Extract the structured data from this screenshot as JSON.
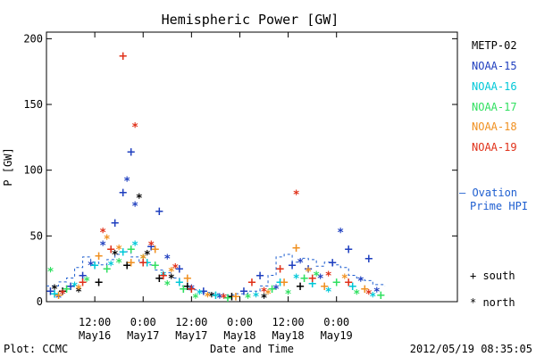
{
  "chart_data": {
    "type": "scatter",
    "title": "Hemispheric Power [GW]",
    "ylabel": "P [GW]",
    "xlabel": "Date and Time",
    "ylim": [
      0,
      205
    ],
    "xlim": [
      0,
      102
    ],
    "x_unit": "hours since 2012-05-16 00:00",
    "yticks": [
      0,
      50,
      100,
      150,
      200
    ],
    "xticks": [
      {
        "x": 12,
        "top": "12:00",
        "bottom": "May16"
      },
      {
        "x": 24,
        "top": "0:00",
        "bottom": "May17"
      },
      {
        "x": 36,
        "top": "12:00",
        "bottom": "May17"
      },
      {
        "x": 48,
        "top": "0:00",
        "bottom": "May18"
      },
      {
        "x": 60,
        "top": "12:00",
        "bottom": "May18"
      },
      {
        "x": 72,
        "top": "0:00",
        "bottom": "May19"
      }
    ],
    "series": [
      {
        "name": "METP-02",
        "color": "#000000",
        "points": [
          {
            "x": 2,
            "y": 12,
            "m": "*"
          },
          {
            "x": 4,
            "y": 8,
            "m": "+"
          },
          {
            "x": 8,
            "y": 10,
            "m": "*"
          },
          {
            "x": 13,
            "y": 15,
            "m": "+"
          },
          {
            "x": 17,
            "y": 38,
            "m": "*"
          },
          {
            "x": 20,
            "y": 28,
            "m": "+"
          },
          {
            "x": 23,
            "y": 81,
            "m": "*"
          },
          {
            "x": 25,
            "y": 38,
            "m": "*"
          },
          {
            "x": 28,
            "y": 18,
            "m": "+"
          },
          {
            "x": 31,
            "y": 20,
            "m": "*"
          },
          {
            "x": 35,
            "y": 12,
            "m": "+"
          },
          {
            "x": 41,
            "y": 6,
            "m": "*"
          },
          {
            "x": 46,
            "y": 4,
            "m": "+"
          },
          {
            "x": 54,
            "y": 5,
            "m": "*"
          },
          {
            "x": 63,
            "y": 12,
            "m": "+"
          }
        ]
      },
      {
        "name": "NOAA-15",
        "color": "#1f3fbf",
        "points": [
          {
            "x": 1,
            "y": 8,
            "m": "+"
          },
          {
            "x": 3,
            "y": 5,
            "m": "*"
          },
          {
            "x": 6,
            "y": 12,
            "m": "+"
          },
          {
            "x": 9,
            "y": 20,
            "m": "+"
          },
          {
            "x": 11,
            "y": 30,
            "m": "*"
          },
          {
            "x": 14,
            "y": 45,
            "m": "*"
          },
          {
            "x": 17,
            "y": 60,
            "m": "+"
          },
          {
            "x": 19,
            "y": 83,
            "m": "+"
          },
          {
            "x": 20,
            "y": 94,
            "m": "*"
          },
          {
            "x": 21,
            "y": 114,
            "m": "+"
          },
          {
            "x": 22,
            "y": 75,
            "m": "*"
          },
          {
            "x": 26,
            "y": 42,
            "m": "+"
          },
          {
            "x": 28,
            "y": 69,
            "m": "+"
          },
          {
            "x": 30,
            "y": 35,
            "m": "*"
          },
          {
            "x": 33,
            "y": 25,
            "m": "+"
          },
          {
            "x": 36,
            "y": 12,
            "m": "*"
          },
          {
            "x": 39,
            "y": 8,
            "m": "+"
          },
          {
            "x": 43,
            "y": 5,
            "m": "*"
          },
          {
            "x": 49,
            "y": 8,
            "m": "+"
          },
          {
            "x": 53,
            "y": 20,
            "m": "+"
          },
          {
            "x": 57,
            "y": 12,
            "m": "*"
          },
          {
            "x": 61,
            "y": 28,
            "m": "+"
          },
          {
            "x": 63,
            "y": 32,
            "m": "*"
          },
          {
            "x": 65,
            "y": 25,
            "m": "+"
          },
          {
            "x": 68,
            "y": 20,
            "m": "*"
          },
          {
            "x": 71,
            "y": 30,
            "m": "+"
          },
          {
            "x": 73,
            "y": 55,
            "m": "*"
          },
          {
            "x": 75,
            "y": 40,
            "m": "+"
          },
          {
            "x": 78,
            "y": 18,
            "m": "*"
          },
          {
            "x": 80,
            "y": 33,
            "m": "+"
          },
          {
            "x": 82,
            "y": 10,
            "m": "*"
          }
        ]
      },
      {
        "name": "NOAA-16",
        "color": "#00c8d8",
        "points": [
          {
            "x": 2,
            "y": 6,
            "m": "+"
          },
          {
            "x": 7,
            "y": 14,
            "m": "*"
          },
          {
            "x": 12,
            "y": 28,
            "m": "+"
          },
          {
            "x": 16,
            "y": 30,
            "m": "*"
          },
          {
            "x": 19,
            "y": 38,
            "m": "+"
          },
          {
            "x": 22,
            "y": 45,
            "m": "*"
          },
          {
            "x": 25,
            "y": 30,
            "m": "+"
          },
          {
            "x": 29,
            "y": 22,
            "m": "*"
          },
          {
            "x": 33,
            "y": 15,
            "m": "+"
          },
          {
            "x": 38,
            "y": 8,
            "m": "*"
          },
          {
            "x": 42,
            "y": 5,
            "m": "+"
          },
          {
            "x": 52,
            "y": 6,
            "m": "*"
          },
          {
            "x": 58,
            "y": 15,
            "m": "+"
          },
          {
            "x": 62,
            "y": 20,
            "m": "*"
          },
          {
            "x": 66,
            "y": 14,
            "m": "+"
          },
          {
            "x": 70,
            "y": 10,
            "m": "*"
          },
          {
            "x": 76,
            "y": 12,
            "m": "+"
          },
          {
            "x": 81,
            "y": 6,
            "m": "*"
          }
        ]
      },
      {
        "name": "NOAA-17",
        "color": "#30e060",
        "points": [
          {
            "x": 1,
            "y": 25,
            "m": "*"
          },
          {
            "x": 5,
            "y": 10,
            "m": "+"
          },
          {
            "x": 10,
            "y": 18,
            "m": "*"
          },
          {
            "x": 15,
            "y": 25,
            "m": "+"
          },
          {
            "x": 18,
            "y": 32,
            "m": "*"
          },
          {
            "x": 21,
            "y": 40,
            "m": "+"
          },
          {
            "x": 24,
            "y": 35,
            "m": "*"
          },
          {
            "x": 27,
            "y": 28,
            "m": "+"
          },
          {
            "x": 30,
            "y": 15,
            "m": "*"
          },
          {
            "x": 34,
            "y": 10,
            "m": "+"
          },
          {
            "x": 37,
            "y": 5,
            "m": "*"
          },
          {
            "x": 45,
            "y": 3,
            "m": "+"
          },
          {
            "x": 50,
            "y": 5,
            "m": "*"
          },
          {
            "x": 56,
            "y": 10,
            "m": "+"
          },
          {
            "x": 60,
            "y": 8,
            "m": "*"
          },
          {
            "x": 64,
            "y": 18,
            "m": "+"
          },
          {
            "x": 67,
            "y": 22,
            "m": "*"
          },
          {
            "x": 72,
            "y": 15,
            "m": "+"
          },
          {
            "x": 77,
            "y": 8,
            "m": "*"
          },
          {
            "x": 83,
            "y": 5,
            "m": "+"
          }
        ]
      },
      {
        "name": "NOAA-18",
        "color": "#f09020",
        "points": [
          {
            "x": 3,
            "y": 5,
            "m": "+"
          },
          {
            "x": 8,
            "y": 12,
            "m": "*"
          },
          {
            "x": 13,
            "y": 35,
            "m": "+"
          },
          {
            "x": 15,
            "y": 50,
            "m": "*"
          },
          {
            "x": 18,
            "y": 42,
            "m": "*"
          },
          {
            "x": 21,
            "y": 30,
            "m": "+"
          },
          {
            "x": 24,
            "y": 35,
            "m": "*"
          },
          {
            "x": 27,
            "y": 40,
            "m": "+"
          },
          {
            "x": 31,
            "y": 25,
            "m": "*"
          },
          {
            "x": 35,
            "y": 18,
            "m": "+"
          },
          {
            "x": 40,
            "y": 6,
            "m": "*"
          },
          {
            "x": 47,
            "y": 4,
            "m": "+"
          },
          {
            "x": 55,
            "y": 8,
            "m": "*"
          },
          {
            "x": 59,
            "y": 15,
            "m": "+"
          },
          {
            "x": 62,
            "y": 41,
            "m": "+"
          },
          {
            "x": 65,
            "y": 25,
            "m": "*"
          },
          {
            "x": 69,
            "y": 12,
            "m": "+"
          },
          {
            "x": 74,
            "y": 20,
            "m": "*"
          },
          {
            "x": 79,
            "y": 10,
            "m": "+"
          }
        ]
      },
      {
        "name": "NOAA-19",
        "color": "#e03018",
        "points": [
          {
            "x": 4,
            "y": 8,
            "m": "*"
          },
          {
            "x": 9,
            "y": 15,
            "m": "+"
          },
          {
            "x": 14,
            "y": 55,
            "m": "*"
          },
          {
            "x": 16,
            "y": 40,
            "m": "+"
          },
          {
            "x": 19,
            "y": 187,
            "m": "+"
          },
          {
            "x": 22,
            "y": 135,
            "m": "*"
          },
          {
            "x": 24,
            "y": 30,
            "m": "+"
          },
          {
            "x": 26,
            "y": 45,
            "m": "*"
          },
          {
            "x": 29,
            "y": 20,
            "m": "+"
          },
          {
            "x": 32,
            "y": 28,
            "m": "*"
          },
          {
            "x": 36,
            "y": 10,
            "m": "+"
          },
          {
            "x": 44,
            "y": 5,
            "m": "*"
          },
          {
            "x": 51,
            "y": 15,
            "m": "+"
          },
          {
            "x": 54,
            "y": 10,
            "m": "*"
          },
          {
            "x": 58,
            "y": 25,
            "m": "+"
          },
          {
            "x": 62,
            "y": 84,
            "m": "*"
          },
          {
            "x": 66,
            "y": 18,
            "m": "+"
          },
          {
            "x": 70,
            "y": 22,
            "m": "*"
          },
          {
            "x": 75,
            "y": 15,
            "m": "+"
          },
          {
            "x": 80,
            "y": 8,
            "m": "*"
          }
        ]
      }
    ],
    "ovation_line": {
      "color": "#1f5fd0",
      "points": [
        [
          0,
          12
        ],
        [
          3,
          15
        ],
        [
          5,
          18
        ],
        [
          7,
          26
        ],
        [
          9,
          34
        ],
        [
          11,
          30
        ],
        [
          13,
          28
        ],
        [
          15,
          32
        ],
        [
          17,
          36
        ],
        [
          19,
          38
        ],
        [
          21,
          34
        ],
        [
          23,
          30
        ],
        [
          25,
          28
        ],
        [
          27,
          24
        ],
        [
          29,
          22
        ],
        [
          31,
          18
        ],
        [
          33,
          12
        ],
        [
          35,
          9
        ],
        [
          38,
          7
        ],
        [
          41,
          6
        ],
        [
          44,
          5
        ],
        [
          47,
          6
        ],
        [
          50,
          8
        ],
        [
          53,
          12
        ],
        [
          55,
          20
        ],
        [
          57,
          34
        ],
        [
          59,
          36
        ],
        [
          61,
          30
        ],
        [
          63,
          33
        ],
        [
          65,
          32
        ],
        [
          67,
          27
        ],
        [
          69,
          30
        ],
        [
          71,
          28
        ],
        [
          73,
          26
        ],
        [
          75,
          20
        ],
        [
          77,
          18
        ],
        [
          79,
          16
        ],
        [
          81,
          13
        ],
        [
          84,
          12
        ]
      ]
    }
  },
  "legend": {
    "items": [
      {
        "label": "METP-02",
        "color": "#000000"
      },
      {
        "label": "NOAA-15",
        "color": "#1f3fbf"
      },
      {
        "label": "NOAA-16",
        "color": "#00c8d8"
      },
      {
        "label": "NOAA-17",
        "color": "#30e060"
      },
      {
        "label": "NOAA-18",
        "color": "#f09020"
      },
      {
        "label": "NOAA-19",
        "color": "#e03018"
      }
    ],
    "ovation_line1": "– Ovation",
    "ovation_line2": "Prime HPI",
    "ovation_color": "#1f5fd0",
    "south_label": "+ south",
    "north_label": "* north"
  },
  "footer": {
    "plot_credit": "Plot: CCMC",
    "timestamp": "2012/05/19 08:35:05"
  }
}
